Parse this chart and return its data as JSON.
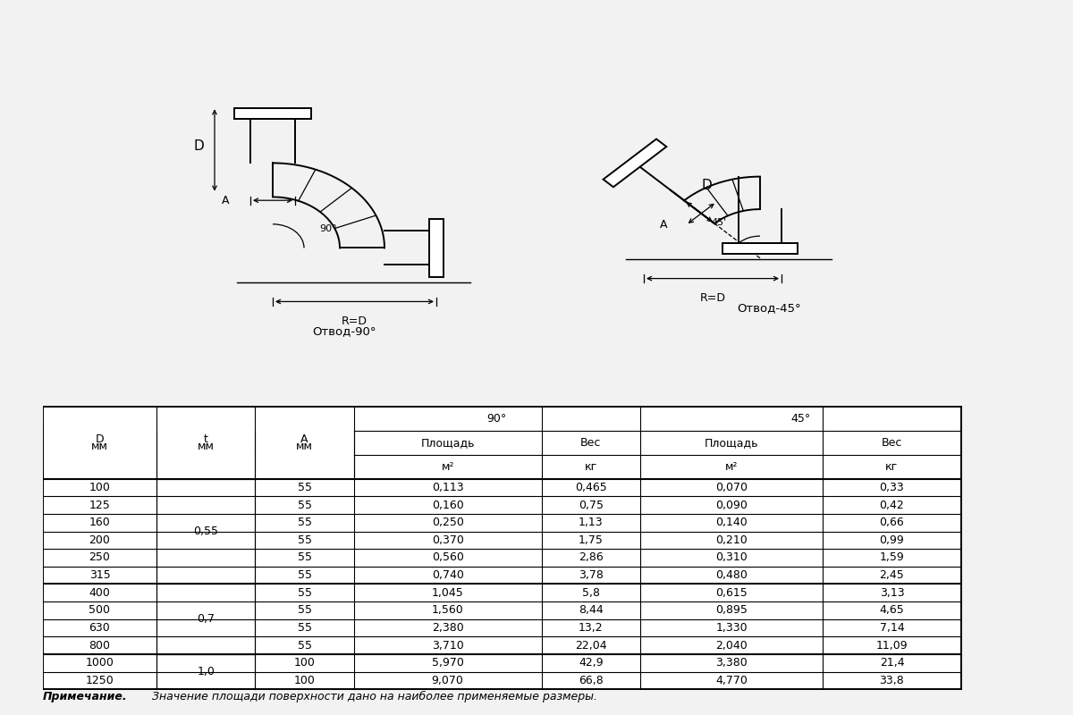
{
  "rows": [
    [
      "100",
      "",
      "55",
      "0,113",
      "0,465",
      "0,070",
      "0,33"
    ],
    [
      "125",
      "",
      "55",
      "0,160",
      "0,75",
      "0,090",
      "0,42"
    ],
    [
      "160",
      "",
      "55",
      "0,250",
      "1,13",
      "0,140",
      "0,66"
    ],
    [
      "200",
      "",
      "55",
      "0,370",
      "1,75",
      "0,210",
      "0,99"
    ],
    [
      "250",
      "",
      "55",
      "0,560",
      "2,86",
      "0,310",
      "1,59"
    ],
    [
      "315",
      "",
      "55",
      "0,740",
      "3,78",
      "0,480",
      "2,45"
    ],
    [
      "400",
      "",
      "55",
      "1,045",
      "5,8",
      "0,615",
      "3,13"
    ],
    [
      "500",
      "",
      "55",
      "1,560",
      "8,44",
      "0,895",
      "4,65"
    ],
    [
      "630",
      "",
      "55",
      "2,380",
      "13,2",
      "1,330",
      "7,14"
    ],
    [
      "800",
      "",
      "55",
      "3,710",
      "22,04",
      "2,040",
      "11,09"
    ],
    [
      "1000",
      "",
      "100",
      "5,970",
      "42,9",
      "3,380",
      "21,4"
    ],
    [
      "1250",
      "",
      "100",
      "9,070",
      "66,8",
      "4,770",
      "33,8"
    ]
  ],
  "t_groups": [
    {
      "value": "0,55",
      "start": 0,
      "end": 5
    },
    {
      "value": "0,7",
      "start": 6,
      "end": 9
    },
    {
      "value": "1,0",
      "start": 10,
      "end": 11
    }
  ],
  "note_bold": "Примечание.",
  "note_rest": " Значение площади поверхности дано на наиболее применяемые размеры.",
  "label_90": "Отвод-90°",
  "label_45": "Отвод-45°",
  "bg_color": "#f2f2f2"
}
